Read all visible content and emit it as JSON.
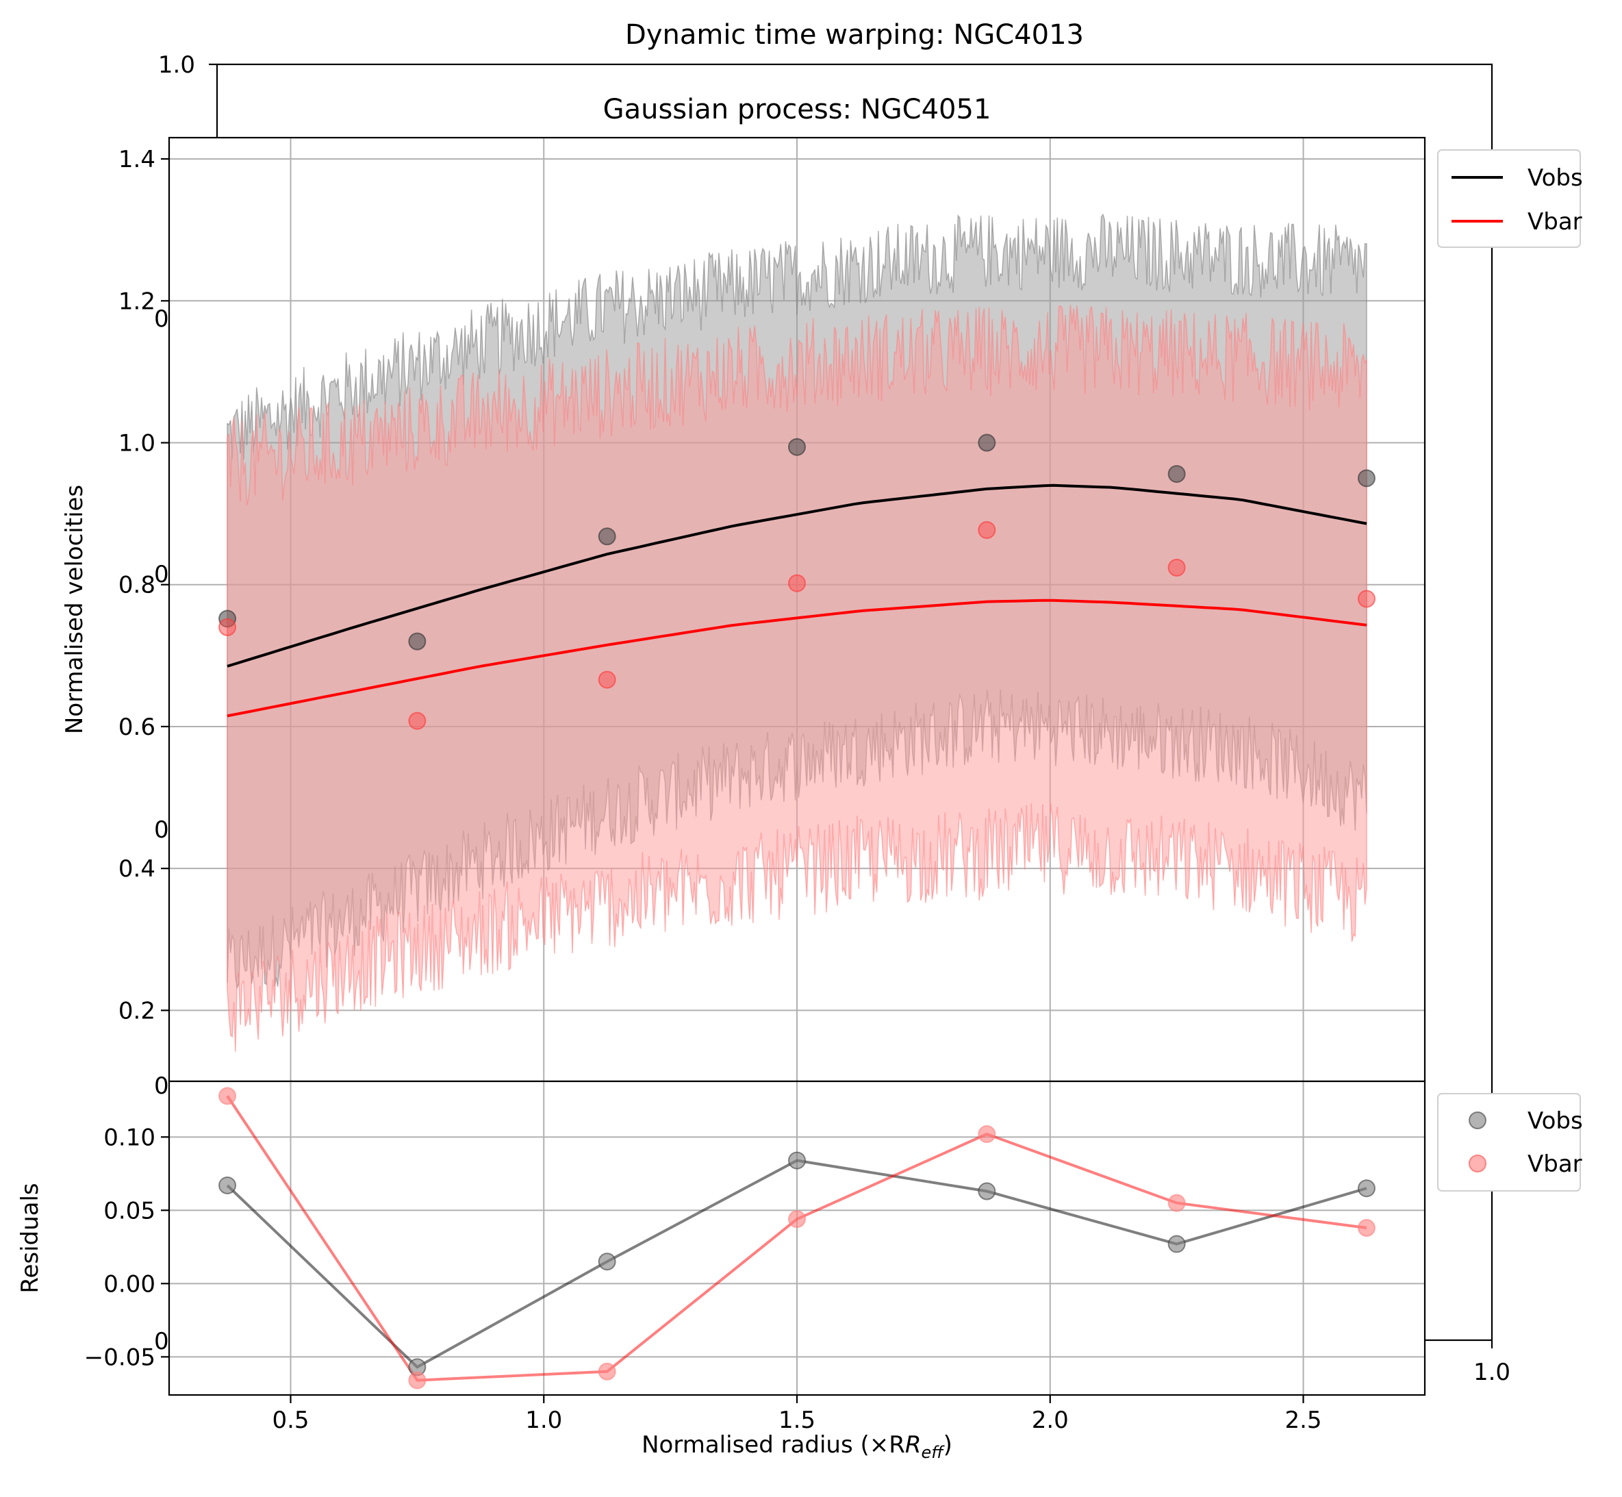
{
  "chart_data": [
    {
      "type": "line",
      "title": "Dynamic time warping: NGC4013",
      "xlim": [
        0,
        1
      ],
      "ylim": [
        0,
        1
      ],
      "xticks": [
        "1.0"
      ],
      "yticks": [
        "1.0"
      ],
      "ytick_partial": [
        "0",
        "0",
        "0",
        "0",
        "0"
      ]
    },
    {
      "type": "line",
      "title": "Gaussian process: NGC4051",
      "xlabel": "",
      "ylabel": "Normalised velocities",
      "xlim": [
        0.26,
        2.74
      ],
      "ylim": [
        0.1,
        1.43
      ],
      "grid": true,
      "legend": "outside-top-right",
      "yticks": [
        0.2,
        0.4,
        0.6,
        0.8,
        1.0,
        1.2,
        1.4
      ],
      "ytick_labels": [
        "0.2",
        "0.4",
        "0.6",
        "0.8",
        "1.0",
        "1.2",
        "1.4"
      ],
      "xticks": [
        0.5,
        1.0,
        1.5,
        2.0,
        2.5
      ],
      "series": [
        {
          "name": "Vobs",
          "color": "#000000",
          "fit_x": [
            0.375,
            0.625,
            0.875,
            1.125,
            1.375,
            1.625,
            1.875,
            2.0,
            2.125,
            2.375,
            2.625
          ],
          "fit_y": [
            0.685,
            0.74,
            0.793,
            0.843,
            0.883,
            0.915,
            0.935,
            0.94,
            0.937,
            0.92,
            0.886
          ],
          "band_upper": [
            1.01,
            1.08,
            1.14,
            1.19,
            1.22,
            1.25,
            1.27,
            1.27,
            1.27,
            1.26,
            1.25
          ],
          "band_lower": [
            0.26,
            0.33,
            0.41,
            0.48,
            0.53,
            0.57,
            0.6,
            0.6,
            0.59,
            0.57,
            0.5
          ],
          "points_x": [
            0.375,
            0.75,
            1.125,
            1.5,
            1.875,
            2.25,
            2.625
          ],
          "points_y": [
            0.752,
            0.72,
            0.868,
            0.994,
            1.0,
            0.956,
            0.95
          ]
        },
        {
          "name": "Vbar",
          "color": "#ff0000",
          "fit_x": [
            0.375,
            0.625,
            0.875,
            1.125,
            1.375,
            1.625,
            1.875,
            2.0,
            2.125,
            2.375,
            2.625
          ],
          "fit_y": [
            0.615,
            0.65,
            0.685,
            0.715,
            0.743,
            0.763,
            0.776,
            0.778,
            0.775,
            0.765,
            0.743
          ],
          "band_upper": [
            0.97,
            1.0,
            1.04,
            1.07,
            1.1,
            1.12,
            1.13,
            1.13,
            1.13,
            1.12,
            1.1
          ],
          "band_lower": [
            0.2,
            0.26,
            0.31,
            0.35,
            0.38,
            0.41,
            0.42,
            0.43,
            0.42,
            0.4,
            0.35
          ],
          "points_x": [
            0.375,
            0.75,
            1.125,
            1.5,
            1.875,
            2.25,
            2.625
          ],
          "points_y": [
            0.74,
            0.608,
            0.666,
            0.802,
            0.877,
            0.824,
            0.78
          ]
        }
      ]
    },
    {
      "type": "scatter",
      "title": "",
      "xlabel": "Normalised radius (×R",
      "xlabel_sub": "eff",
      "xlabel_close": ")",
      "ylabel": "Residuals",
      "xlim": [
        0.26,
        2.74
      ],
      "ylim": [
        -0.076,
        0.138
      ],
      "grid": true,
      "legend": "outside-top-right",
      "xticks": [
        0.5,
        1.0,
        1.5,
        2.0,
        2.5
      ],
      "xtick_labels": [
        "0.5",
        "1.0",
        "1.5",
        "2.0",
        "2.5"
      ],
      "yticks": [
        -0.05,
        0.0,
        0.05,
        0.1
      ],
      "ytick_labels": [
        "−0.05",
        "0.00",
        "0.05",
        "0.10"
      ],
      "series": [
        {
          "name": "Vobs",
          "color": "#808080",
          "x": [
            0.375,
            0.75,
            1.125,
            1.5,
            1.875,
            2.25,
            2.625
          ],
          "y": [
            0.067,
            -0.057,
            0.015,
            0.084,
            0.063,
            0.027,
            0.065
          ]
        },
        {
          "name": "Vbar",
          "color": "#ff8080",
          "x": [
            0.375,
            0.75,
            1.125,
            1.5,
            1.875,
            2.25,
            2.625
          ],
          "y": [
            0.128,
            -0.066,
            -0.06,
            0.044,
            0.102,
            0.055,
            0.038
          ]
        }
      ]
    }
  ]
}
